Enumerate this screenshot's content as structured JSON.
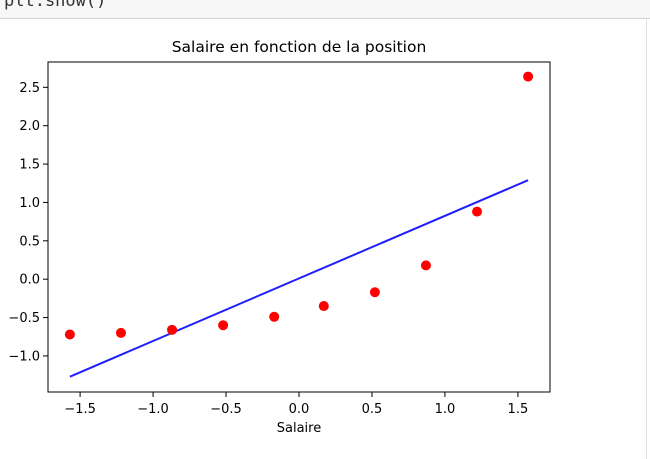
{
  "notebook": {
    "code_line": "plt.show()"
  },
  "colors": {
    "points": "#ff0000",
    "line": "#1f1fff",
    "axis": "#000000"
  },
  "chart_data": {
    "type": "scatter",
    "title": "Salaire en fonction de la position",
    "xlabel": "Salaire",
    "ylabel": "",
    "xlim": [
      -1.72,
      1.72
    ],
    "ylim": [
      -1.47,
      2.83
    ],
    "xticks": [
      -1.5,
      -1.0,
      -0.5,
      0.0,
      0.5,
      1.0,
      1.5
    ],
    "xtick_labels": [
      "−1.5",
      "−1.0",
      "−0.5",
      "0.0",
      "0.5",
      "1.0",
      "1.5"
    ],
    "yticks": [
      -1.0,
      -0.5,
      0.0,
      0.5,
      1.0,
      1.5,
      2.0,
      2.5
    ],
    "ytick_labels": [
      "−1.0",
      "−0.5",
      "0.0",
      "0.5",
      "1.0",
      "1.5",
      "2.0",
      "2.5"
    ],
    "grid": false,
    "series": [
      {
        "kind": "scatter",
        "x": [
          -1.57,
          -1.22,
          -0.87,
          -0.52,
          -0.17,
          0.17,
          0.52,
          0.87,
          1.22,
          1.57
        ],
        "y": [
          -0.72,
          -0.7,
          -0.66,
          -0.6,
          -0.49,
          -0.35,
          -0.17,
          0.18,
          0.88,
          2.64
        ]
      },
      {
        "kind": "line",
        "x": [
          -1.57,
          1.57
        ],
        "y": [
          -1.27,
          1.29
        ]
      }
    ]
  }
}
